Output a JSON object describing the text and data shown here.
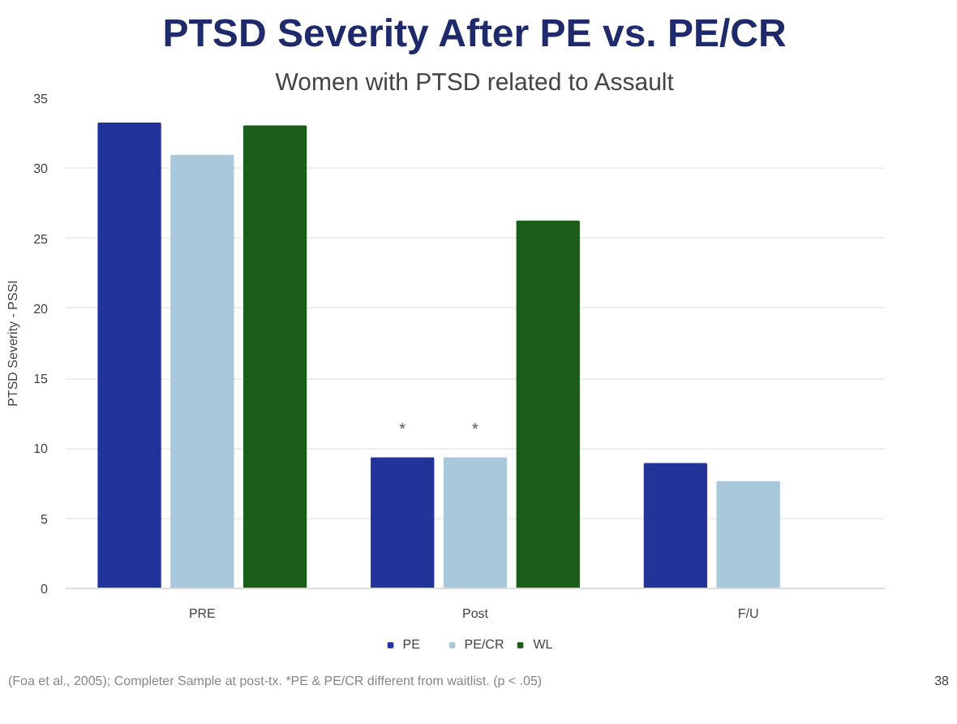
{
  "chart_data": {
    "type": "bar",
    "title": "PTSD Severity After PE vs. PE/CR",
    "subtitle": "Women with PTSD related to Assault",
    "ylabel": "PTSD Severity - PSSI",
    "categories": [
      "PRE",
      "Post",
      "F/U"
    ],
    "series": [
      {
        "name": "PE",
        "color": "#22349a",
        "values": [
          33.2,
          9.3,
          8.9
        ],
        "value_labels": [
          null,
          "*",
          null
        ]
      },
      {
        "name": "PE/CR",
        "color": "#a9c8dc",
        "values": [
          30.9,
          9.3,
          7.6
        ],
        "value_labels": [
          null,
          "*",
          null
        ]
      },
      {
        "name": "WL",
        "color": "#1a5e1a",
        "values": [
          33.0,
          26.2,
          null
        ]
      }
    ],
    "ylim": [
      0,
      35
    ],
    "yticks": [
      0,
      5,
      10,
      15,
      20,
      25,
      30,
      35
    ],
    "grid": "y",
    "legend": "bottom",
    "annotations": [
      "(Foa et al., 2005); Completer Sample at post-tx. *PE & PE/CR different from waitlist.  (p < .05)",
      "38"
    ]
  }
}
